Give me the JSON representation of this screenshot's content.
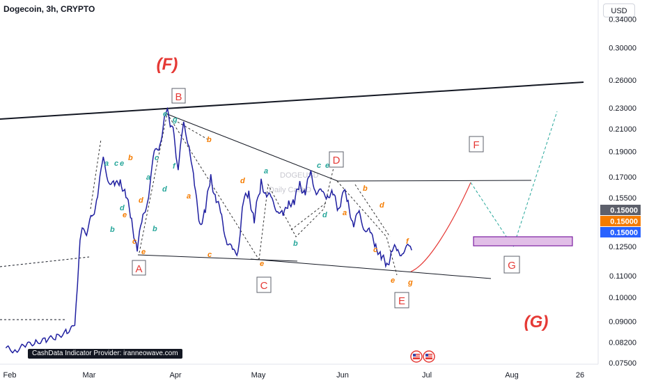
{
  "chart_data": {
    "type": "line",
    "title": "Dogecoin, 3h, CRYPTO",
    "currency": "USD",
    "y_scale": "log",
    "ylim": [
      0.0745,
      0.37
    ],
    "x_tick_labels": [
      "Feb",
      "Mar",
      "Apr",
      "May",
      "Jun",
      "Jul",
      "Aug",
      "26"
    ],
    "y_tick_labels": [
      "0.34000",
      "0.30000",
      "0.26000",
      "0.23000",
      "0.21000",
      "0.19000",
      "0.17000",
      "0.15500",
      "0.12500",
      "0.11000",
      "0.10000",
      "0.09000",
      "0.08200",
      "0.07500"
    ],
    "y_ticks": [
      0.34,
      0.3,
      0.26,
      0.23,
      0.21,
      0.19,
      0.17,
      0.155,
      0.125,
      0.11,
      0.1,
      0.09,
      0.082,
      0.075
    ],
    "price_badges": [
      {
        "value": "0.15000",
        "color": "#5d606b"
      },
      {
        "value": "0.15000",
        "color": "#f57c00"
      },
      {
        "value": "0.15000",
        "color": "#2962ff"
      }
    ],
    "series": [
      {
        "color": "#1f1fa0",
        "x": [
          "Jan 30",
          "Feb 3",
          "Feb 7",
          "Feb 11",
          "Feb 15",
          "Feb 19",
          "Feb 23",
          "Feb 26",
          "Feb 27",
          "Feb 28",
          "Mar 2",
          "Mar 4",
          "Mar 6",
          "Mar 8",
          "Mar 10",
          "Mar 12",
          "Mar 14",
          "Mar 16",
          "Mar 18",
          "Mar 20",
          "Mar 22",
          "Mar 24",
          "Mar 26",
          "Mar 28",
          "Mar 29",
          "Mar 30",
          "Mar 31",
          "Apr 2",
          "Apr 4",
          "Apr 6",
          "Apr 8",
          "Apr 10",
          "Apr 12",
          "Apr 14",
          "Apr 16",
          "Apr 18",
          "Apr 20",
          "Apr 22",
          "Apr 24",
          "Apr 26",
          "Apr 28",
          "Apr 30",
          "May 2",
          "May 4",
          "May 6",
          "May 8",
          "May 10",
          "May 12",
          "May 14",
          "May 16",
          "May 18",
          "May 20",
          "May 22",
          "May 24",
          "May 26",
          "May 28",
          "May 30",
          "Jun 1",
          "Jun 3",
          "Jun 5",
          "Jun 7",
          "Jun 9",
          "Jun 11",
          "Jun 13",
          "Jun 15",
          "Jun 17",
          "Jun 19",
          "Jun 21",
          "Jun 23",
          "Jun 25",
          "Jun 26"
        ],
        "y": [
          0.08,
          0.079,
          0.081,
          0.082,
          0.083,
          0.084,
          0.086,
          0.088,
          0.105,
          0.13,
          0.14,
          0.16,
          0.18,
          0.17,
          0.16,
          0.17,
          0.155,
          0.14,
          0.125,
          0.14,
          0.16,
          0.185,
          0.2,
          0.22,
          0.225,
          0.215,
          0.2,
          0.18,
          0.21,
          0.2,
          0.16,
          0.14,
          0.145,
          0.17,
          0.155,
          0.14,
          0.13,
          0.12,
          0.125,
          0.15,
          0.16,
          0.14,
          0.165,
          0.16,
          0.15,
          0.15,
          0.14,
          0.155,
          0.15,
          0.165,
          0.16,
          0.17,
          0.162,
          0.155,
          0.16,
          0.155,
          0.148,
          0.16,
          0.15,
          0.14,
          0.142,
          0.138,
          0.13,
          0.128,
          0.118,
          0.115,
          0.125,
          0.12,
          0.125,
          0.122,
          0.123
        ]
      }
    ],
    "wave_labels": {
      "major": [
        "A",
        "B",
        "C",
        "D",
        "E",
        "F",
        "G"
      ],
      "degree": [
        "(F)",
        "(G)"
      ],
      "minor": [
        "a",
        "b",
        "c",
        "d",
        "e",
        "f",
        "g"
      ]
    },
    "watermark": [
      "DOGEUSD",
      "Daily CashD"
    ],
    "provider_text": "CashData Indicator Provider: iranneowave.com"
  }
}
